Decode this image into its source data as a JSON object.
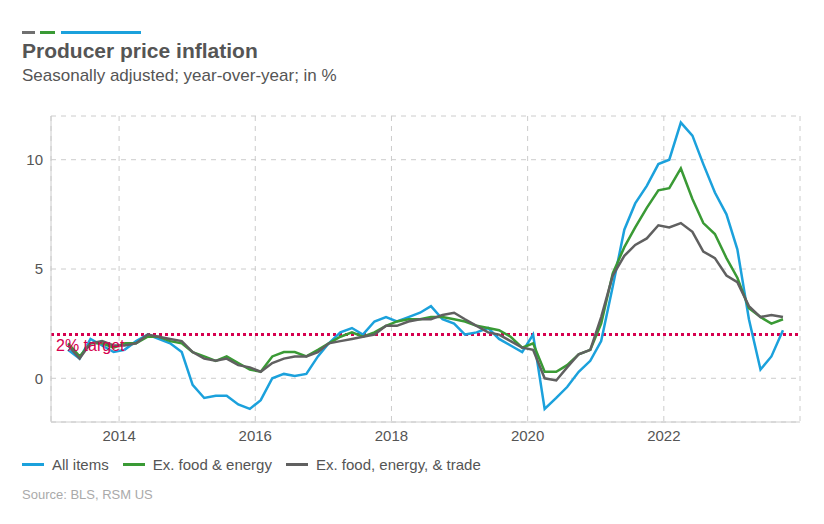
{
  "chart_data": {
    "type": "line",
    "title": "Producer price inflation",
    "subtitle": "Seasonally adjusted; year-over-year; in %",
    "source": "Source: BLS, RSM US",
    "x": [
      2013.25,
      2013.42,
      2013.58,
      2013.75,
      2013.92,
      2014.08,
      2014.25,
      2014.42,
      2014.58,
      2014.75,
      2014.92,
      2015.08,
      2015.25,
      2015.42,
      2015.58,
      2015.75,
      2015.92,
      2016.08,
      2016.25,
      2016.42,
      2016.58,
      2016.75,
      2016.92,
      2017.08,
      2017.25,
      2017.42,
      2017.58,
      2017.75,
      2017.92,
      2018.08,
      2018.25,
      2018.42,
      2018.58,
      2018.75,
      2018.92,
      2019.08,
      2019.25,
      2019.42,
      2019.58,
      2019.75,
      2019.92,
      2020.08,
      2020.25,
      2020.42,
      2020.58,
      2020.75,
      2020.92,
      2021.08,
      2021.25,
      2021.42,
      2021.58,
      2021.75,
      2021.92,
      2022.08,
      2022.25,
      2022.42,
      2022.58,
      2022.75,
      2022.92,
      2023.08,
      2023.25,
      2023.42,
      2023.58,
      2023.75
    ],
    "series": [
      {
        "name": "All items",
        "color": "#1ba1dc",
        "values": [
          1.3,
          0.9,
          1.8,
          1.5,
          1.2,
          1.3,
          1.7,
          2.0,
          1.8,
          1.6,
          1.2,
          -0.3,
          -0.9,
          -0.8,
          -0.8,
          -1.2,
          -1.4,
          -1.0,
          0.0,
          0.2,
          0.1,
          0.2,
          1.0,
          1.6,
          2.1,
          2.3,
          2.0,
          2.6,
          2.8,
          2.6,
          2.8,
          3.0,
          3.3,
          2.7,
          2.5,
          2.0,
          2.1,
          2.3,
          1.8,
          1.5,
          1.2,
          2.0,
          -1.4,
          -0.9,
          -0.4,
          0.3,
          0.8,
          1.7,
          4.2,
          6.8,
          8.0,
          8.8,
          9.8,
          10.0,
          11.7,
          11.1,
          9.8,
          8.5,
          7.5,
          5.9,
          2.7,
          0.4,
          1.0,
          2.2
        ]
      },
      {
        "name": "Ex. food & energy",
        "color": "#3a9a35",
        "values": [
          1.6,
          1.0,
          1.6,
          1.6,
          1.4,
          1.6,
          1.6,
          1.9,
          1.9,
          1.7,
          1.6,
          1.2,
          1.0,
          0.8,
          1.0,
          0.7,
          0.4,
          0.3,
          1.0,
          1.2,
          1.2,
          1.0,
          1.3,
          1.6,
          1.9,
          2.1,
          1.9,
          2.1,
          2.4,
          2.6,
          2.7,
          2.7,
          2.8,
          2.8,
          2.7,
          2.6,
          2.4,
          2.3,
          2.2,
          1.9,
          1.4,
          1.6,
          0.3,
          0.3,
          0.6,
          1.1,
          1.3,
          2.5,
          4.8,
          6.0,
          6.9,
          7.8,
          8.6,
          8.7,
          9.6,
          8.2,
          7.1,
          6.6,
          5.5,
          4.6,
          3.2,
          2.8,
          2.5,
          2.7
        ]
      },
      {
        "name": "Ex. food, energy, & trade",
        "color": "#606060",
        "values": [
          1.5,
          0.9,
          1.6,
          1.7,
          1.5,
          1.5,
          1.6,
          2.0,
          1.9,
          1.8,
          1.7,
          1.2,
          0.9,
          0.8,
          0.9,
          0.6,
          0.5,
          0.3,
          0.7,
          0.9,
          1.0,
          1.0,
          1.2,
          1.6,
          1.7,
          1.8,
          1.9,
          2.0,
          2.4,
          2.4,
          2.6,
          2.7,
          2.7,
          2.9,
          3.0,
          2.7,
          2.4,
          2.1,
          2.0,
          1.7,
          1.4,
          1.3,
          0.0,
          -0.1,
          0.5,
          1.1,
          1.3,
          2.8,
          4.7,
          5.6,
          6.1,
          6.4,
          7.0,
          6.9,
          7.1,
          6.7,
          5.8,
          5.5,
          4.7,
          4.4,
          3.3,
          2.8,
          2.9,
          2.8
        ]
      }
    ],
    "xlim": [
      2013,
      2024
    ],
    "xticks": [
      2014,
      2016,
      2018,
      2020,
      2022
    ],
    "ylim": [
      -2,
      12
    ],
    "yticks": [
      0,
      5,
      10
    ],
    "grid": true,
    "legend": "bottom-left",
    "annotations": [
      {
        "y": 2,
        "text": "2% target",
        "color": "#d6004f"
      }
    ]
  }
}
